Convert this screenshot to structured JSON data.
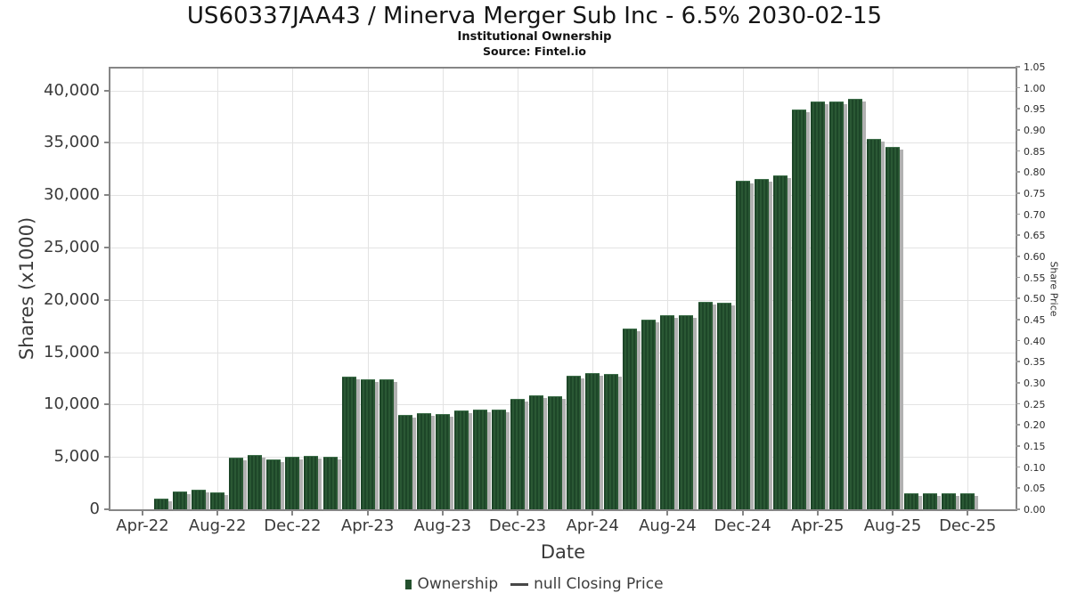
{
  "header": {
    "title": "US60337JAA43 / Minerva Merger Sub Inc - 6.5% 2030-02-15",
    "subtitle": "Institutional Ownership",
    "source": "Source: Fintel.io"
  },
  "legend": {
    "items": [
      {
        "label": "Ownership",
        "marker": "square"
      },
      {
        "label": "null Closing Price",
        "marker": "line"
      }
    ]
  },
  "chart_data": {
    "type": "bar",
    "title": "US60337JAA43 / Minerva Merger Sub Inc - 6.5% 2030-02-15",
    "subtitle": "Institutional Ownership",
    "source": "Source: Fintel.io",
    "xlabel": "Date",
    "ylabel_left": "Shares (x1000)",
    "ylabel_right": "Share Price",
    "grid": true,
    "legend_position": "bottom",
    "bar_color": "#24512e",
    "bar_shadow_color": "#b1b1b1",
    "ylim_left": [
      0,
      42100
    ],
    "ylim_right": [
      0,
      1.05
    ],
    "left_tick_values": [
      0,
      5000,
      10000,
      15000,
      20000,
      25000,
      30000,
      35000,
      40000
    ],
    "left_tick_labels": [
      "0",
      "5,000",
      "10,000",
      "15,000",
      "20,000",
      "25,000",
      "30,000",
      "35,000",
      "40,000"
    ],
    "right_tick_labels": [
      "0.00",
      "0.05",
      "0.10",
      "0.15",
      "0.20",
      "0.25",
      "0.30",
      "0.35",
      "0.40",
      "0.45",
      "0.50",
      "0.55",
      "0.60",
      "0.65",
      "0.70",
      "0.75",
      "0.80",
      "0.85",
      "0.90",
      "0.95",
      "1.00",
      "1.05"
    ],
    "x_tick_labels": [
      "Apr-22",
      "Aug-22",
      "Dec-22",
      "Apr-23",
      "Aug-23",
      "Dec-23",
      "Apr-24",
      "Aug-24",
      "Dec-24",
      "Apr-25",
      "Aug-25",
      "Dec-25"
    ],
    "x_tick_month_offsets": [
      0,
      4,
      8,
      12,
      16,
      20,
      24,
      28,
      32,
      36,
      40,
      44
    ],
    "categories": [
      "May-22",
      "Jun-22",
      "Jul-22",
      "Aug-22",
      "Sep-22",
      "Oct-22",
      "Nov-22",
      "Dec-22",
      "Jan-23",
      "Feb-23",
      "Mar-23",
      "Apr-23",
      "May-23",
      "Jun-23",
      "Jul-23",
      "Aug-23",
      "Sep-23",
      "Oct-23",
      "Nov-23",
      "Dec-23",
      "Jan-24",
      "Feb-24",
      "Mar-24",
      "Apr-24",
      "May-24",
      "Jun-24",
      "Jul-24",
      "Aug-24",
      "Sep-24",
      "Oct-24",
      "Nov-24",
      "Dec-24",
      "Jan-25",
      "Feb-25",
      "Mar-25",
      "Apr-25",
      "May-25",
      "Jun-25",
      "Jul-25",
      "Aug-25",
      "Sep-25",
      "Oct-25",
      "Nov-25",
      "Dec-25"
    ],
    "series": [
      {
        "name": "Ownership",
        "values": [
          1000,
          1700,
          1900,
          1650,
          4900,
          5150,
          4800,
          5000,
          5100,
          5050,
          12650,
          12400,
          12400,
          9000,
          9150,
          9100,
          9400,
          9500,
          9550,
          10550,
          10900,
          10800,
          12750,
          13000,
          12950,
          17300,
          18100,
          18550,
          18550,
          19800,
          19750,
          31350,
          31550,
          31900,
          38200,
          38950,
          38950,
          39250,
          35350,
          34600,
          1550,
          1550,
          1550,
          1550
        ]
      },
      {
        "name": "null Closing Price",
        "values": null
      }
    ]
  }
}
